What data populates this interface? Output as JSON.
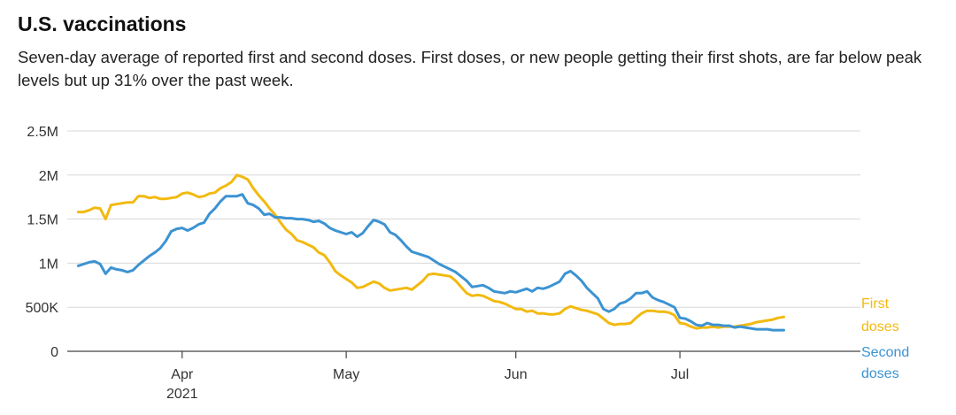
{
  "title": "U.S. vaccinations",
  "subtitle": "Seven-day average of reported first and second doses. First doses, or new people getting their first shots, are far below peak levels but up 31% over the past week.",
  "colors": {
    "first": "#f2b90f",
    "second": "#3c93d2",
    "grid": "#d8d8d8",
    "axis": "#444444"
  },
  "chart_data": {
    "type": "line",
    "x_start": "2021-03-13",
    "y_ticks": [
      0,
      500000,
      1000000,
      1500000,
      2000000,
      2500000
    ],
    "y_tick_labels": [
      "0",
      "500K",
      "1M",
      "1.5M",
      "2M",
      "2.5M"
    ],
    "ylim": [
      0,
      2500000
    ],
    "x_ticks": [
      {
        "date": "2021-04-01",
        "label": "Apr",
        "sublabel": "2021"
      },
      {
        "date": "2021-05-01",
        "label": "May",
        "sublabel": ""
      },
      {
        "date": "2021-06-01",
        "label": "Jun",
        "sublabel": ""
      },
      {
        "date": "2021-07-01",
        "label": "Jul",
        "sublabel": ""
      }
    ],
    "xlim": [
      "2021-03-11",
      "2021-08-03"
    ],
    "series": [
      {
        "name": "First doses",
        "label_lines": [
          "First",
          "doses"
        ],
        "color_key": "first",
        "values": [
          1580000,
          1580000,
          1600000,
          1630000,
          1620000,
          1500000,
          1660000,
          1670000,
          1680000,
          1690000,
          1690000,
          1760000,
          1760000,
          1740000,
          1750000,
          1730000,
          1730000,
          1740000,
          1750000,
          1790000,
          1800000,
          1780000,
          1750000,
          1760000,
          1790000,
          1800000,
          1850000,
          1880000,
          1920000,
          2000000,
          1980000,
          1950000,
          1850000,
          1770000,
          1700000,
          1620000,
          1550000,
          1460000,
          1380000,
          1330000,
          1260000,
          1240000,
          1210000,
          1180000,
          1120000,
          1090000,
          1010000,
          910000,
          860000,
          820000,
          780000,
          720000,
          730000,
          760000,
          790000,
          770000,
          720000,
          690000,
          700000,
          710000,
          720000,
          700000,
          750000,
          800000,
          870000,
          880000,
          870000,
          860000,
          850000,
          800000,
          730000,
          660000,
          630000,
          640000,
          630000,
          600000,
          570000,
          560000,
          540000,
          510000,
          480000,
          480000,
          450000,
          460000,
          430000,
          430000,
          420000,
          420000,
          430000,
          480000,
          510000,
          490000,
          470000,
          460000,
          440000,
          420000,
          370000,
          320000,
          300000,
          310000,
          310000,
          320000,
          380000,
          430000,
          460000,
          460000,
          450000,
          450000,
          440000,
          410000,
          320000,
          310000,
          280000,
          260000,
          270000,
          270000,
          280000,
          270000,
          280000,
          280000,
          280000,
          290000,
          300000,
          310000,
          330000,
          340000,
          350000,
          360000,
          380000,
          390000
        ]
      },
      {
        "name": "Second doses",
        "label_lines": [
          "Second",
          "doses"
        ],
        "color_key": "second",
        "values": [
          970000,
          990000,
          1010000,
          1020000,
          990000,
          880000,
          950000,
          930000,
          920000,
          900000,
          920000,
          980000,
          1030000,
          1080000,
          1120000,
          1170000,
          1250000,
          1360000,
          1390000,
          1400000,
          1370000,
          1400000,
          1440000,
          1460000,
          1560000,
          1620000,
          1700000,
          1760000,
          1760000,
          1760000,
          1780000,
          1680000,
          1660000,
          1620000,
          1550000,
          1560000,
          1520000,
          1520000,
          1510000,
          1510000,
          1500000,
          1500000,
          1490000,
          1470000,
          1480000,
          1450000,
          1400000,
          1370000,
          1350000,
          1330000,
          1350000,
          1300000,
          1340000,
          1420000,
          1490000,
          1470000,
          1440000,
          1350000,
          1320000,
          1260000,
          1190000,
          1130000,
          1110000,
          1090000,
          1070000,
          1030000,
          990000,
          960000,
          930000,
          900000,
          850000,
          800000,
          730000,
          740000,
          750000,
          720000,
          680000,
          670000,
          660000,
          680000,
          670000,
          690000,
          710000,
          680000,
          720000,
          710000,
          730000,
          760000,
          790000,
          880000,
          910000,
          860000,
          800000,
          720000,
          660000,
          600000,
          480000,
          450000,
          480000,
          540000,
          560000,
          600000,
          660000,
          660000,
          680000,
          610000,
          580000,
          560000,
          530000,
          500000,
          380000,
          370000,
          340000,
          300000,
          290000,
          320000,
          300000,
          300000,
          290000,
          290000,
          270000,
          280000,
          270000,
          260000,
          250000,
          250000,
          250000,
          240000,
          240000,
          240000
        ]
      }
    ]
  }
}
